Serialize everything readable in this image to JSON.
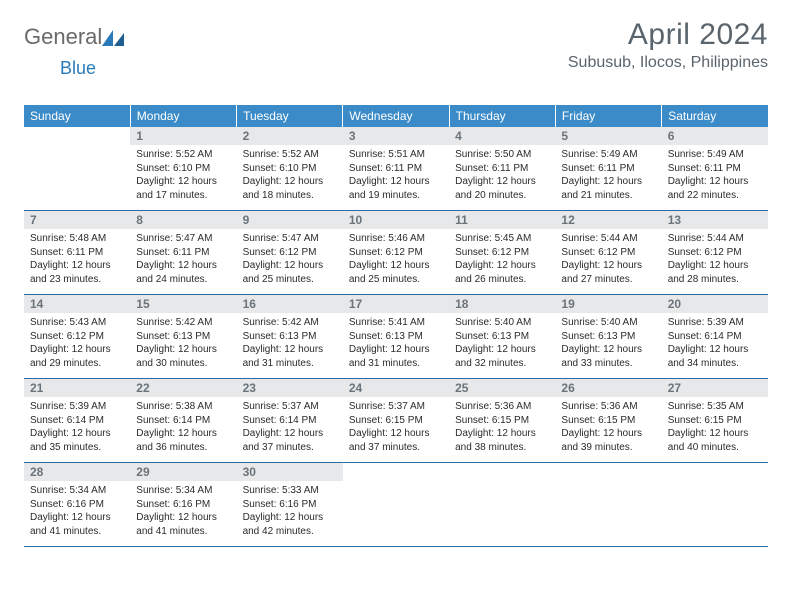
{
  "logo": {
    "part1": "General",
    "part2": "Blue"
  },
  "title": "April 2024",
  "location": "Subusub, Ilocos, Philippines",
  "colors": {
    "header_bg": "#3b8bc8",
    "header_text": "#ffffff",
    "daynum_bg": "#e7e8e9",
    "daynum_text": "#6b747b",
    "rule": "#2a6aa0",
    "title_text": "#5a646c",
    "logo_gray": "#6a6a6a",
    "logo_blue": "#2a7ab9"
  },
  "dow": [
    "Sunday",
    "Monday",
    "Tuesday",
    "Wednesday",
    "Thursday",
    "Friday",
    "Saturday"
  ],
  "weeks": [
    [
      null,
      {
        "n": "1",
        "sr": "Sunrise: 5:52 AM",
        "ss": "Sunset: 6:10 PM",
        "d1": "Daylight: 12 hours",
        "d2": "and 17 minutes."
      },
      {
        "n": "2",
        "sr": "Sunrise: 5:52 AM",
        "ss": "Sunset: 6:10 PM",
        "d1": "Daylight: 12 hours",
        "d2": "and 18 minutes."
      },
      {
        "n": "3",
        "sr": "Sunrise: 5:51 AM",
        "ss": "Sunset: 6:11 PM",
        "d1": "Daylight: 12 hours",
        "d2": "and 19 minutes."
      },
      {
        "n": "4",
        "sr": "Sunrise: 5:50 AM",
        "ss": "Sunset: 6:11 PM",
        "d1": "Daylight: 12 hours",
        "d2": "and 20 minutes."
      },
      {
        "n": "5",
        "sr": "Sunrise: 5:49 AM",
        "ss": "Sunset: 6:11 PM",
        "d1": "Daylight: 12 hours",
        "d2": "and 21 minutes."
      },
      {
        "n": "6",
        "sr": "Sunrise: 5:49 AM",
        "ss": "Sunset: 6:11 PM",
        "d1": "Daylight: 12 hours",
        "d2": "and 22 minutes."
      }
    ],
    [
      {
        "n": "7",
        "sr": "Sunrise: 5:48 AM",
        "ss": "Sunset: 6:11 PM",
        "d1": "Daylight: 12 hours",
        "d2": "and 23 minutes."
      },
      {
        "n": "8",
        "sr": "Sunrise: 5:47 AM",
        "ss": "Sunset: 6:11 PM",
        "d1": "Daylight: 12 hours",
        "d2": "and 24 minutes."
      },
      {
        "n": "9",
        "sr": "Sunrise: 5:47 AM",
        "ss": "Sunset: 6:12 PM",
        "d1": "Daylight: 12 hours",
        "d2": "and 25 minutes."
      },
      {
        "n": "10",
        "sr": "Sunrise: 5:46 AM",
        "ss": "Sunset: 6:12 PM",
        "d1": "Daylight: 12 hours",
        "d2": "and 25 minutes."
      },
      {
        "n": "11",
        "sr": "Sunrise: 5:45 AM",
        "ss": "Sunset: 6:12 PM",
        "d1": "Daylight: 12 hours",
        "d2": "and 26 minutes."
      },
      {
        "n": "12",
        "sr": "Sunrise: 5:44 AM",
        "ss": "Sunset: 6:12 PM",
        "d1": "Daylight: 12 hours",
        "d2": "and 27 minutes."
      },
      {
        "n": "13",
        "sr": "Sunrise: 5:44 AM",
        "ss": "Sunset: 6:12 PM",
        "d1": "Daylight: 12 hours",
        "d2": "and 28 minutes."
      }
    ],
    [
      {
        "n": "14",
        "sr": "Sunrise: 5:43 AM",
        "ss": "Sunset: 6:12 PM",
        "d1": "Daylight: 12 hours",
        "d2": "and 29 minutes."
      },
      {
        "n": "15",
        "sr": "Sunrise: 5:42 AM",
        "ss": "Sunset: 6:13 PM",
        "d1": "Daylight: 12 hours",
        "d2": "and 30 minutes."
      },
      {
        "n": "16",
        "sr": "Sunrise: 5:42 AM",
        "ss": "Sunset: 6:13 PM",
        "d1": "Daylight: 12 hours",
        "d2": "and 31 minutes."
      },
      {
        "n": "17",
        "sr": "Sunrise: 5:41 AM",
        "ss": "Sunset: 6:13 PM",
        "d1": "Daylight: 12 hours",
        "d2": "and 31 minutes."
      },
      {
        "n": "18",
        "sr": "Sunrise: 5:40 AM",
        "ss": "Sunset: 6:13 PM",
        "d1": "Daylight: 12 hours",
        "d2": "and 32 minutes."
      },
      {
        "n": "19",
        "sr": "Sunrise: 5:40 AM",
        "ss": "Sunset: 6:13 PM",
        "d1": "Daylight: 12 hours",
        "d2": "and 33 minutes."
      },
      {
        "n": "20",
        "sr": "Sunrise: 5:39 AM",
        "ss": "Sunset: 6:14 PM",
        "d1": "Daylight: 12 hours",
        "d2": "and 34 minutes."
      }
    ],
    [
      {
        "n": "21",
        "sr": "Sunrise: 5:39 AM",
        "ss": "Sunset: 6:14 PM",
        "d1": "Daylight: 12 hours",
        "d2": "and 35 minutes."
      },
      {
        "n": "22",
        "sr": "Sunrise: 5:38 AM",
        "ss": "Sunset: 6:14 PM",
        "d1": "Daylight: 12 hours",
        "d2": "and 36 minutes."
      },
      {
        "n": "23",
        "sr": "Sunrise: 5:37 AM",
        "ss": "Sunset: 6:14 PM",
        "d1": "Daylight: 12 hours",
        "d2": "and 37 minutes."
      },
      {
        "n": "24",
        "sr": "Sunrise: 5:37 AM",
        "ss": "Sunset: 6:15 PM",
        "d1": "Daylight: 12 hours",
        "d2": "and 37 minutes."
      },
      {
        "n": "25",
        "sr": "Sunrise: 5:36 AM",
        "ss": "Sunset: 6:15 PM",
        "d1": "Daylight: 12 hours",
        "d2": "and 38 minutes."
      },
      {
        "n": "26",
        "sr": "Sunrise: 5:36 AM",
        "ss": "Sunset: 6:15 PM",
        "d1": "Daylight: 12 hours",
        "d2": "and 39 minutes."
      },
      {
        "n": "27",
        "sr": "Sunrise: 5:35 AM",
        "ss": "Sunset: 6:15 PM",
        "d1": "Daylight: 12 hours",
        "d2": "and 40 minutes."
      }
    ],
    [
      {
        "n": "28",
        "sr": "Sunrise: 5:34 AM",
        "ss": "Sunset: 6:16 PM",
        "d1": "Daylight: 12 hours",
        "d2": "and 41 minutes."
      },
      {
        "n": "29",
        "sr": "Sunrise: 5:34 AM",
        "ss": "Sunset: 6:16 PM",
        "d1": "Daylight: 12 hours",
        "d2": "and 41 minutes."
      },
      {
        "n": "30",
        "sr": "Sunrise: 5:33 AM",
        "ss": "Sunset: 6:16 PM",
        "d1": "Daylight: 12 hours",
        "d2": "and 42 minutes."
      },
      null,
      null,
      null,
      null
    ]
  ]
}
